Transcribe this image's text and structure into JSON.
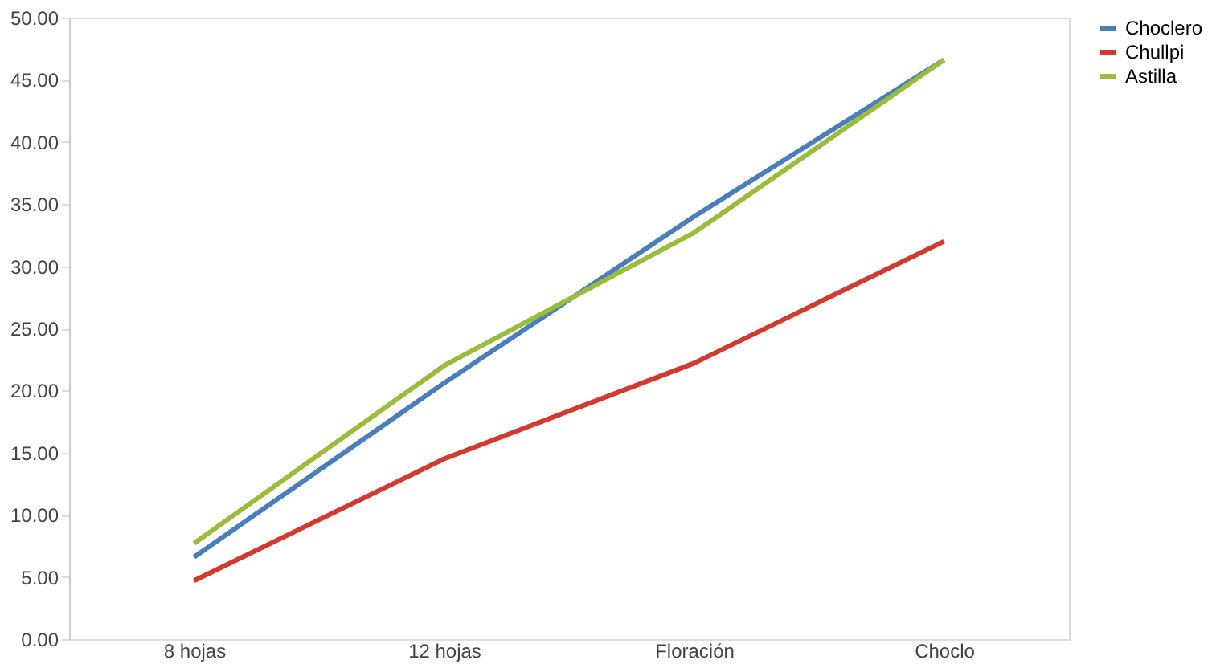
{
  "chart_data": {
    "type": "line",
    "categories": [
      "8 hojas",
      "12 hojas",
      "Floración",
      "Choclo"
    ],
    "series": [
      {
        "name": "Choclero",
        "color": "#4a7ebb",
        "values": [
          6.6,
          20.6,
          34.0,
          46.6
        ]
      },
      {
        "name": "Chullpi",
        "color": "#d03a30",
        "values": [
          4.7,
          14.5,
          22.2,
          32.0
        ]
      },
      {
        "name": "Astilla",
        "color": "#9bbb3c",
        "values": [
          7.7,
          22.0,
          32.7,
          46.6
        ]
      }
    ],
    "ylim": [
      0,
      50
    ],
    "yticks": [
      {
        "value": 0,
        "label": "0.00"
      },
      {
        "value": 5,
        "label": "5.00"
      },
      {
        "value": 10,
        "label": "10.00"
      },
      {
        "value": 15,
        "label": "15.00"
      },
      {
        "value": 20,
        "label": "20.00"
      },
      {
        "value": 25,
        "label": "25.00"
      },
      {
        "value": 30,
        "label": "30.00"
      },
      {
        "value": 35,
        "label": "35.00"
      },
      {
        "value": 40,
        "label": "40.00"
      },
      {
        "value": 45,
        "label": "45.00"
      },
      {
        "value": 50,
        "label": "50.00"
      }
    ],
    "grid": false,
    "legend": "right",
    "marker": "none",
    "line_style": "solid"
  }
}
